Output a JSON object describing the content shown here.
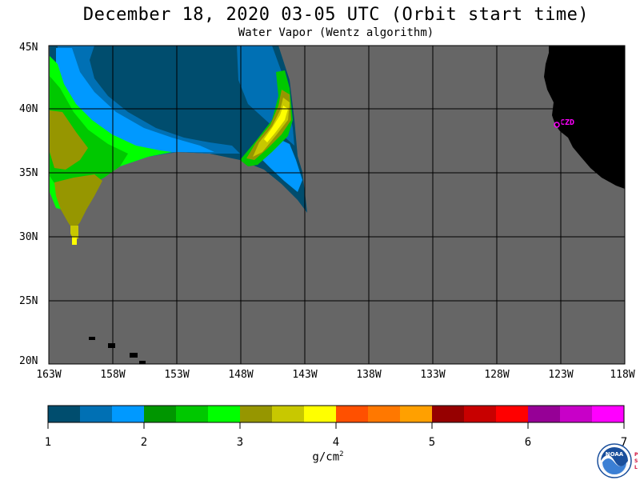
{
  "title": "December 18, 2020  03-05 UTC  (Orbit start time)",
  "subtitle": "Water Vapor (Wentz algorithm)",
  "map": {
    "lat_labels": [
      "45N",
      "40N",
      "35N",
      "30N",
      "25N",
      "20N"
    ],
    "lon_labels": [
      "163W",
      "158W",
      "153W",
      "148W",
      "143W",
      "138W",
      "133W",
      "128W",
      "123W",
      "118W"
    ],
    "location_label": "CZD",
    "colors": {
      "no_data": "#666666",
      "land": "#000000",
      "grid": "#000000",
      "location": "#ff00ff"
    }
  },
  "colorbar": {
    "ticks": [
      "1",
      "2",
      "3",
      "4",
      "5",
      "6",
      "7"
    ],
    "units_base": "g/cm",
    "units_exp": "2",
    "colors": [
      "#004d6e",
      "#0070b4",
      "#0099ff",
      "#009600",
      "#00c800",
      "#00ff00",
      "#969600",
      "#c8c800",
      "#ffff00",
      "#ff5000",
      "#ff7800",
      "#ffa000",
      "#960000",
      "#c80000",
      "#ff0000",
      "#960096",
      "#c800c8",
      "#ff00ff"
    ]
  },
  "logo": {
    "text": "NOAA",
    "side_text": [
      "P",
      "S",
      "L"
    ]
  }
}
